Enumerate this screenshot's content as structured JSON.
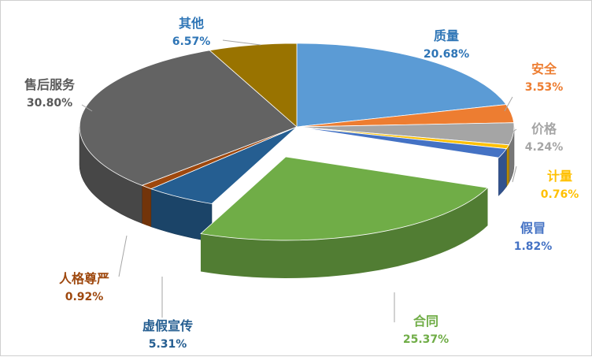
{
  "chart_data": {
    "type": "pie",
    "title": "",
    "three_d": true,
    "legend": "none",
    "slices": [
      {
        "label": "质量",
        "value": 20.68,
        "display": "20.68%",
        "color": "#5B9BD5",
        "label_color": "#2E75B6"
      },
      {
        "label": "安全",
        "value": 3.53,
        "display": "3.53%",
        "color": "#ED7D31",
        "label_color": "#ED7D31"
      },
      {
        "label": "价格",
        "value": 4.24,
        "display": "4.24%",
        "color": "#A5A5A5",
        "label_color": "#A5A5A5"
      },
      {
        "label": "计量",
        "value": 0.76,
        "display": "0.76%",
        "color": "#FFC000",
        "label_color": "#FFC000"
      },
      {
        "label": "假冒",
        "value": 1.82,
        "display": "1.82%",
        "color": "#4472C4",
        "label_color": "#4472C4"
      },
      {
        "label": "合同",
        "value": 25.37,
        "display": "25.37%",
        "color": "#70AD47",
        "label_color": "#70AD47"
      },
      {
        "label": "虚假宣传",
        "value": 5.31,
        "display": "5.31%",
        "color": "#255E91",
        "label_color": "#255E91"
      },
      {
        "label": "人格尊严",
        "value": 0.92,
        "display": "0.92%",
        "color": "#9E480E",
        "label_color": "#9E480E"
      },
      {
        "label": "售后服务",
        "value": 30.8,
        "display": "30.80%",
        "color": "#636363",
        "label_color": "#595959"
      },
      {
        "label": "其他",
        "value": 6.57,
        "display": "6.57%",
        "color": "#997300",
        "label_color": "#2E75B6"
      }
    ]
  }
}
